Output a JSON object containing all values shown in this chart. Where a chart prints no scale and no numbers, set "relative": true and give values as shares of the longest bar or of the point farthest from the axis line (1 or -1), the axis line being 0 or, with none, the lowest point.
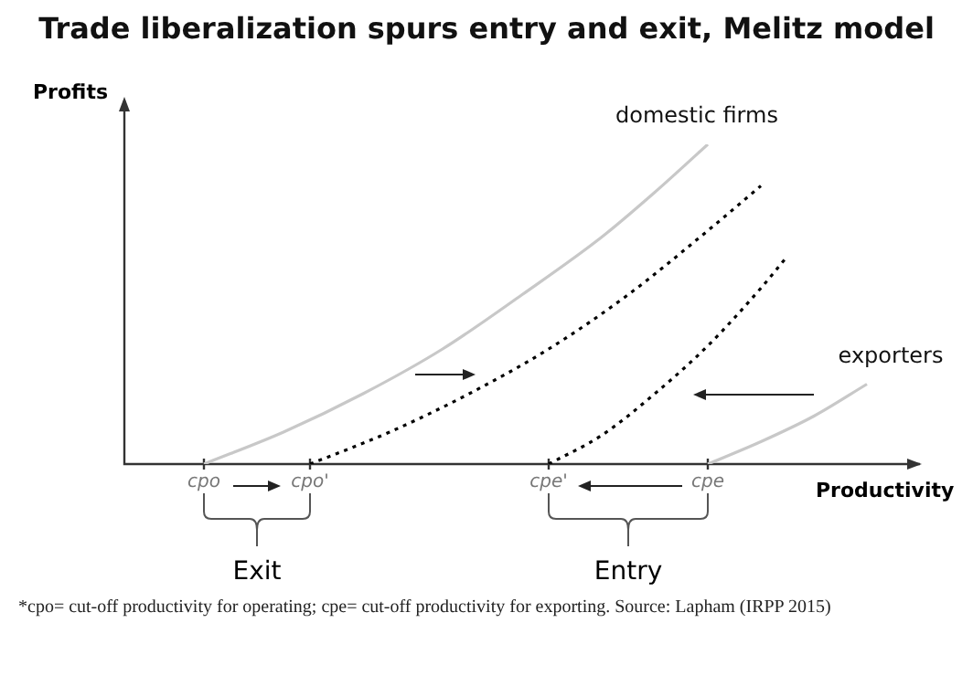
{
  "chart_data": {
    "type": "line",
    "title": "Trade liberalization spurs entry and exit, Melitz model",
    "xlabel": "Productivity",
    "ylabel": "Profits",
    "relative": true,
    "categories": [
      null,
      null,
      null,
      "cpo",
      null,
      null,
      null,
      "cpo'",
      null,
      null,
      null,
      null,
      null,
      null,
      null,
      null,
      "cpe'",
      null,
      null,
      null,
      null,
      null,
      "cpe",
      null,
      null,
      null,
      null,
      null,
      null,
      null,
      null
    ],
    "grid": false,
    "legend": false,
    "marker": "none",
    "series": [
      {
        "name": "domestic firms",
        "color": "#c8c8c8",
        "line_style": "solid",
        "values": [
          null,
          null,
          null,
          0,
          null,
          null,
          0.1,
          null,
          null,
          0.22,
          null,
          null,
          0.36,
          null,
          null,
          0.53,
          null,
          null,
          0.71,
          null,
          0.85,
          null,
          1,
          null,
          null,
          null,
          null,
          null,
          null,
          null,
          null
        ]
      },
      {
        "color": "#000000",
        "line_style": "dotted",
        "values": [
          null,
          null,
          null,
          null,
          null,
          null,
          null,
          0,
          null,
          null,
          0.1,
          null,
          null,
          0.22,
          null,
          null,
          0.36,
          null,
          null,
          0.53,
          null,
          null,
          0.73,
          null,
          0.87,
          null,
          null,
          null,
          null,
          null,
          null
        ]
      },
      {
        "color": "#000000",
        "line_style": "dotted",
        "values": [
          null,
          null,
          null,
          null,
          null,
          null,
          null,
          null,
          null,
          null,
          null,
          null,
          null,
          null,
          null,
          null,
          0,
          null,
          0.09,
          null,
          0.22,
          null,
          0.37,
          null,
          0.55,
          0.65,
          null,
          null,
          null,
          null,
          null
        ]
      },
      {
        "name": "exporters",
        "color": "#c8c8c8",
        "line_style": "solid",
        "values": [
          null,
          null,
          null,
          null,
          null,
          null,
          null,
          null,
          null,
          null,
          null,
          null,
          null,
          null,
          null,
          null,
          null,
          null,
          null,
          null,
          null,
          null,
          0,
          null,
          0.07,
          null,
          0.15,
          null,
          0.25,
          null,
          null
        ]
      }
    ],
    "annotations": [
      "Exit",
      "Entry",
      "*cpo= cut-off productivity for operating; cpe= cut-off productivity for exporting. Source: Lapham (IRPP 2015)"
    ]
  }
}
